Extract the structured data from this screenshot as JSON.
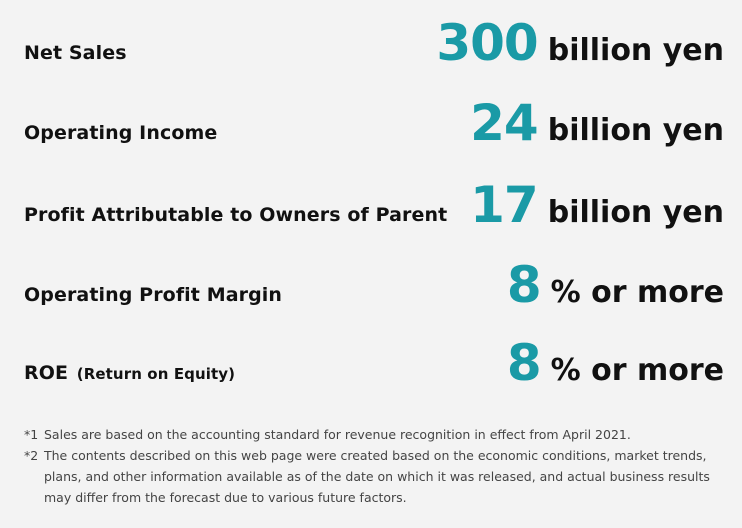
{
  "metrics": [
    {
      "label": "Net Sales",
      "sub": "",
      "value": "300",
      "unit": "billion yen"
    },
    {
      "label": "Operating Income",
      "sub": "",
      "value": "24",
      "unit": "billion yen"
    },
    {
      "label": "Profit Attributable to Owners of Parent",
      "sub": "",
      "value": "17",
      "unit": "billion yen"
    },
    {
      "label": "Operating Profit Margin",
      "sub": "",
      "value": "8",
      "unit": "% or more"
    },
    {
      "label": "ROE",
      "sub": "(Return on Equity)",
      "value": "8",
      "unit": "% or more"
    }
  ],
  "notes": [
    {
      "mark": "*1",
      "text": "Sales are based on the accounting standard for revenue recognition in effect from April 2021."
    },
    {
      "mark": "*2",
      "text": "The contents described on this web page were created based on the economic conditions, market trends, plans, and other information available as of the date on which it was released, and actual business results may differ from the forecast due to various future factors."
    }
  ],
  "colors": {
    "accent": "#1a9aa6",
    "background": "#f3f3f3",
    "text": "#111111"
  }
}
